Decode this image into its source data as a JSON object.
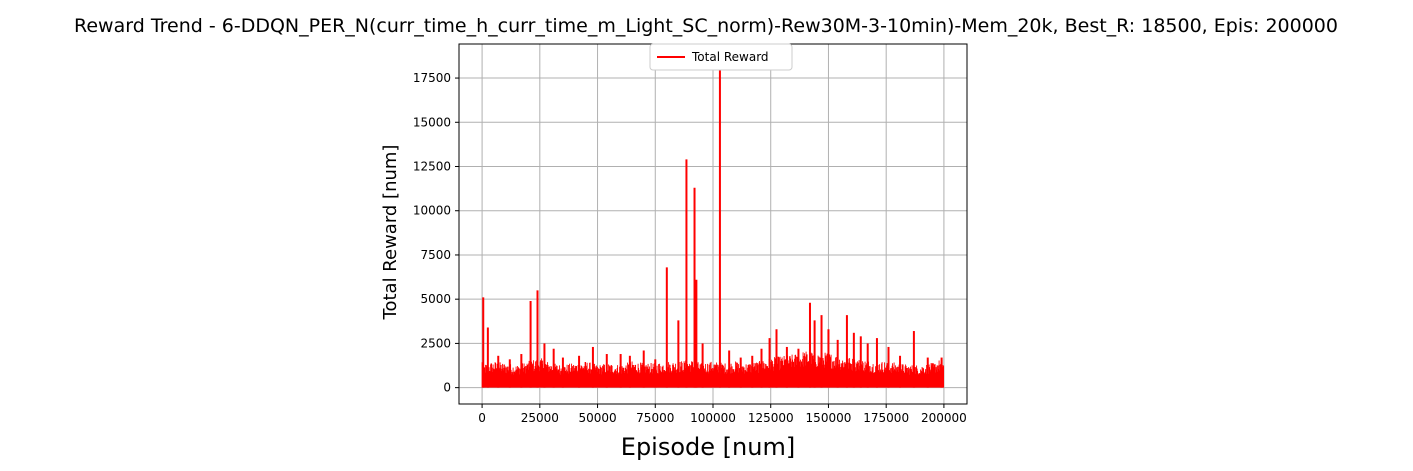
{
  "chart_data": {
    "type": "line",
    "title": "Reward Trend - 6-DDQN_PER_N(curr_time_h_curr_time_m_Light_SC_norm)-Rew30M-3-10min)-Mem_20k, Best_R: 18500, Epis: 200000",
    "xlabel": "Episode [num]",
    "ylabel": "Total Reward [num]",
    "xlim": [
      -10000,
      210000
    ],
    "ylim": [
      -925,
      19425
    ],
    "x_ticks": [
      0,
      25000,
      50000,
      75000,
      100000,
      125000,
      150000,
      175000,
      200000
    ],
    "y_ticks": [
      0,
      2500,
      5000,
      7500,
      10000,
      12500,
      15000,
      17500
    ],
    "x_tick_labels": [
      "0",
      "25000",
      "50000",
      "75000",
      "100000",
      "125000",
      "150000",
      "175000",
      "200000"
    ],
    "y_tick_labels": [
      "0",
      "2500",
      "5000",
      "7500",
      "10000",
      "12500",
      "15000",
      "17500"
    ],
    "grid": true,
    "legend": {
      "position": "upper center",
      "entries": [
        "Total Reward"
      ]
    },
    "series": [
      {
        "name": "Total Reward",
        "color": "#ff0000",
        "baseline_upper_envelope": [
          [
            0,
            1300
          ],
          [
            5000,
            1500
          ],
          [
            10000,
            1400
          ],
          [
            15000,
            1300
          ],
          [
            20000,
            1500
          ],
          [
            25000,
            1700
          ],
          [
            30000,
            1400
          ],
          [
            35000,
            1300
          ],
          [
            40000,
            1400
          ],
          [
            45000,
            1500
          ],
          [
            50000,
            1300
          ],
          [
            55000,
            1400
          ],
          [
            60000,
            1300
          ],
          [
            65000,
            1500
          ],
          [
            70000,
            1400
          ],
          [
            75000,
            1400
          ],
          [
            80000,
            1500
          ],
          [
            85000,
            1500
          ],
          [
            90000,
            1600
          ],
          [
            95000,
            1400
          ],
          [
            100000,
            1500
          ],
          [
            105000,
            1400
          ],
          [
            110000,
            1500
          ],
          [
            115000,
            1400
          ],
          [
            120000,
            1500
          ],
          [
            125000,
            1700
          ],
          [
            130000,
            1800
          ],
          [
            135000,
            1900
          ],
          [
            140000,
            2100
          ],
          [
            145000,
            2000
          ],
          [
            150000,
            2000
          ],
          [
            155000,
            1800
          ],
          [
            160000,
            1700
          ],
          [
            165000,
            1600
          ],
          [
            170000,
            1500
          ],
          [
            175000,
            1500
          ],
          [
            180000,
            1400
          ],
          [
            185000,
            1300
          ],
          [
            190000,
            1300
          ],
          [
            195000,
            1400
          ],
          [
            200000,
            1700
          ]
        ],
        "spikes": [
          [
            500,
            5100
          ],
          [
            2500,
            3400
          ],
          [
            7000,
            1800
          ],
          [
            12000,
            1600
          ],
          [
            17000,
            1900
          ],
          [
            21000,
            4900
          ],
          [
            24000,
            5500
          ],
          [
            27000,
            2500
          ],
          [
            31000,
            2200
          ],
          [
            35000,
            1700
          ],
          [
            42000,
            1800
          ],
          [
            48000,
            2300
          ],
          [
            54000,
            1900
          ],
          [
            60000,
            1900
          ],
          [
            64000,
            1800
          ],
          [
            70000,
            2100
          ],
          [
            75000,
            1600
          ],
          [
            80000,
            6800
          ],
          [
            85000,
            3800
          ],
          [
            88500,
            12900
          ],
          [
            92000,
            11300
          ],
          [
            92800,
            6100
          ],
          [
            95500,
            2500
          ],
          [
            103000,
            18000
          ],
          [
            107000,
            2100
          ],
          [
            112000,
            1700
          ],
          [
            117000,
            1800
          ],
          [
            121000,
            2200
          ],
          [
            124500,
            2800
          ],
          [
            127500,
            3300
          ],
          [
            132000,
            2300
          ],
          [
            137000,
            2200
          ],
          [
            142000,
            4800
          ],
          [
            144000,
            3800
          ],
          [
            147000,
            4100
          ],
          [
            150000,
            3300
          ],
          [
            154000,
            2700
          ],
          [
            158000,
            4100
          ],
          [
            161000,
            3100
          ],
          [
            164000,
            2900
          ],
          [
            167000,
            2500
          ],
          [
            171000,
            2800
          ],
          [
            176000,
            2300
          ],
          [
            181000,
            1800
          ],
          [
            187000,
            3200
          ],
          [
            193000,
            1700
          ],
          [
            199000,
            1700
          ]
        ]
      }
    ]
  }
}
